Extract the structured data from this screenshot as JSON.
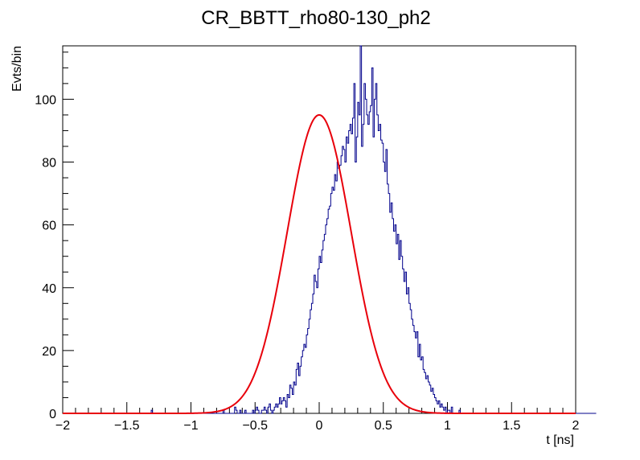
{
  "chart_data": {
    "type": "line",
    "title": "CR_BBTT_rho80-130_ph2",
    "xlabel": "t [ns]",
    "ylabel": "Evts/bin",
    "xlim": [
      -2,
      2
    ],
    "ylim": [
      0,
      117
    ],
    "x_ticks": [
      "−2",
      "−1.5",
      "−1",
      "−0.5",
      "0",
      "0.5",
      "1",
      "1.5",
      "2"
    ],
    "x_tick_values": [
      -2,
      -1.5,
      -1,
      -0.5,
      0,
      0.5,
      1,
      1.5,
      2
    ],
    "y_ticks": [
      "0",
      "20",
      "40",
      "60",
      "80",
      "100"
    ],
    "y_tick_values": [
      0,
      20,
      40,
      60,
      80,
      100
    ],
    "grid": false,
    "series": [
      {
        "kind": "histogram",
        "color": "#00008b",
        "bin_width": 0.01,
        "x_start": -2.0,
        "values": [
          0,
          0,
          0,
          0,
          0,
          0,
          0,
          0,
          0,
          0,
          0,
          0,
          0,
          0,
          0,
          0,
          0,
          0,
          0,
          0,
          0,
          0,
          0,
          0,
          0,
          0,
          0,
          0,
          0,
          0,
          0,
          0,
          0,
          0,
          0,
          0,
          0,
          0,
          0,
          0,
          0,
          0,
          0,
          0,
          0,
          0,
          0,
          0,
          0,
          0,
          0,
          0,
          0,
          0,
          0,
          0,
          0,
          0,
          0,
          0,
          0,
          0,
          0,
          0,
          0,
          0,
          0,
          0,
          0,
          1,
          0,
          0,
          0,
          0,
          0,
          0,
          0,
          0,
          0,
          0,
          0,
          0,
          0,
          0,
          0,
          0,
          0,
          0,
          0,
          0,
          0,
          0,
          0,
          0,
          0,
          0,
          0,
          0,
          0,
          0,
          0,
          0,
          0,
          0,
          0,
          0,
          0,
          0,
          0,
          0,
          0,
          0,
          0,
          0,
          0,
          0,
          0,
          0,
          0,
          0,
          0,
          0,
          0,
          0,
          0,
          1,
          0,
          0,
          0,
          0,
          0,
          0,
          0,
          0,
          2,
          1,
          0,
          0,
          1,
          0,
          0,
          0,
          1,
          0,
          0,
          0,
          0,
          0,
          1,
          0,
          1,
          2,
          1,
          0,
          0,
          1,
          1,
          2,
          1,
          0,
          2,
          3,
          1,
          0,
          1,
          2,
          3,
          2,
          3,
          5,
          3,
          4,
          5,
          4,
          2,
          6,
          5,
          9,
          8,
          6,
          10,
          9,
          14,
          16,
          12,
          15,
          18,
          20,
          22,
          21,
          25,
          27,
          30,
          33,
          35,
          38,
          44,
          42,
          40,
          46,
          50,
          48,
          52,
          55,
          57,
          60,
          62,
          65,
          66,
          70,
          72,
          71,
          76,
          74,
          80,
          78,
          79,
          82,
          85,
          84,
          80,
          88,
          86,
          90,
          92,
          89,
          94,
          105,
          80,
          88,
          99,
          95,
          117,
          85,
          92,
          105,
          100,
          95,
          92,
          96,
          98,
          110,
          88,
          100,
          105,
          95,
          90,
          92,
          87,
          86,
          80,
          77,
          84,
          73,
          70,
          64,
          67,
          62,
          58,
          60,
          54,
          57,
          49,
          55,
          50,
          46,
          42,
          45,
          38,
          40,
          35,
          33,
          30,
          28,
          26,
          24,
          26,
          18,
          22,
          17,
          18,
          14,
          13,
          11,
          12,
          10,
          9,
          7,
          8,
          6,
          5,
          4,
          3,
          4,
          2,
          3,
          2,
          1,
          2,
          0,
          1,
          1,
          0,
          2,
          0,
          0,
          0,
          0,
          0,
          1,
          0,
          0,
          0,
          0,
          0,
          0,
          0,
          0,
          0,
          0,
          0,
          0,
          0,
          0,
          0,
          0,
          0,
          0,
          0,
          0,
          0,
          0,
          0,
          0,
          0,
          0,
          0,
          0,
          0,
          0,
          0,
          0,
          0,
          0,
          0,
          0,
          0,
          0,
          0,
          0,
          0,
          0,
          0,
          0,
          0,
          0,
          0,
          0,
          0,
          0,
          0,
          0,
          0,
          0,
          0,
          0,
          0,
          0,
          0,
          0,
          0,
          0,
          0,
          0,
          0,
          0,
          0,
          0,
          0,
          0,
          0,
          0,
          0,
          0,
          0,
          0,
          0,
          0,
          0,
          0,
          0,
          0,
          0,
          0,
          0,
          0,
          0,
          0,
          0,
          0,
          0,
          0,
          0,
          0,
          0,
          0,
          0,
          0,
          0,
          0,
          0,
          0,
          0,
          0,
          0,
          0
        ]
      },
      {
        "kind": "gaussian_fit",
        "color": "#e8000b",
        "amplitude": 95,
        "mean": 0.0,
        "sigma": 0.25
      }
    ]
  }
}
